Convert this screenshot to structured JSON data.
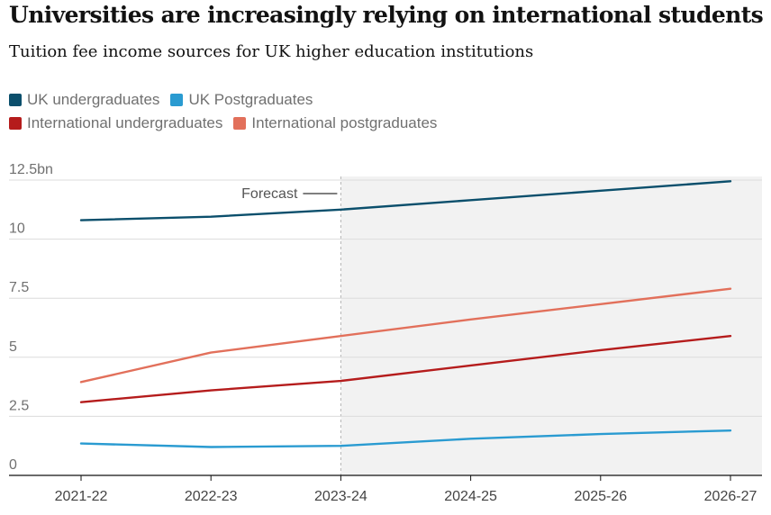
{
  "header": {
    "title": "Universities are increasingly relying on international students",
    "subtitle": "Tuition fee income sources for UK higher education institutions"
  },
  "legend": [
    {
      "label": "UK undergraduates",
      "color": "#0b4f6c"
    },
    {
      "label": "UK Postgraduates",
      "color": "#2a9bd1"
    },
    {
      "label": "International undergraduates",
      "color": "#b51c1c"
    },
    {
      "label": "International postgraduates",
      "color": "#e2705b"
    }
  ],
  "chart_data": {
    "type": "line",
    "title": "Universities are increasingly relying on international students",
    "subtitle": "Tuition fee income sources for UK higher education institutions",
    "categories": [
      "2021-22",
      "2022-23",
      "2023-24",
      "2024-25",
      "2025-26",
      "2026-27"
    ],
    "y_ticks": [
      0,
      2.5,
      5,
      7.5,
      10,
      12.5
    ],
    "y_tick_labels": [
      "0",
      "2.5",
      "5",
      "7.5",
      "10",
      "12.5bn"
    ],
    "ylim": [
      0,
      12.5
    ],
    "forecast_label": "Forecast",
    "forecast_from": "2023-24",
    "series": [
      {
        "name": "UK undergraduates",
        "color": "#0b4f6c",
        "values": [
          10.8,
          10.95,
          11.25,
          11.65,
          12.05,
          12.45
        ]
      },
      {
        "name": "UK Postgraduates",
        "color": "#2a9bd1",
        "values": [
          1.35,
          1.2,
          1.25,
          1.55,
          1.75,
          1.9
        ]
      },
      {
        "name": "International undergraduates",
        "color": "#b51c1c",
        "values": [
          3.1,
          3.6,
          4.0,
          4.65,
          5.3,
          5.9
        ]
      },
      {
        "name": "International postgraduates",
        "color": "#e2705b",
        "values": [
          3.95,
          5.2,
          5.9,
          6.6,
          7.25,
          7.9
        ]
      }
    ]
  }
}
